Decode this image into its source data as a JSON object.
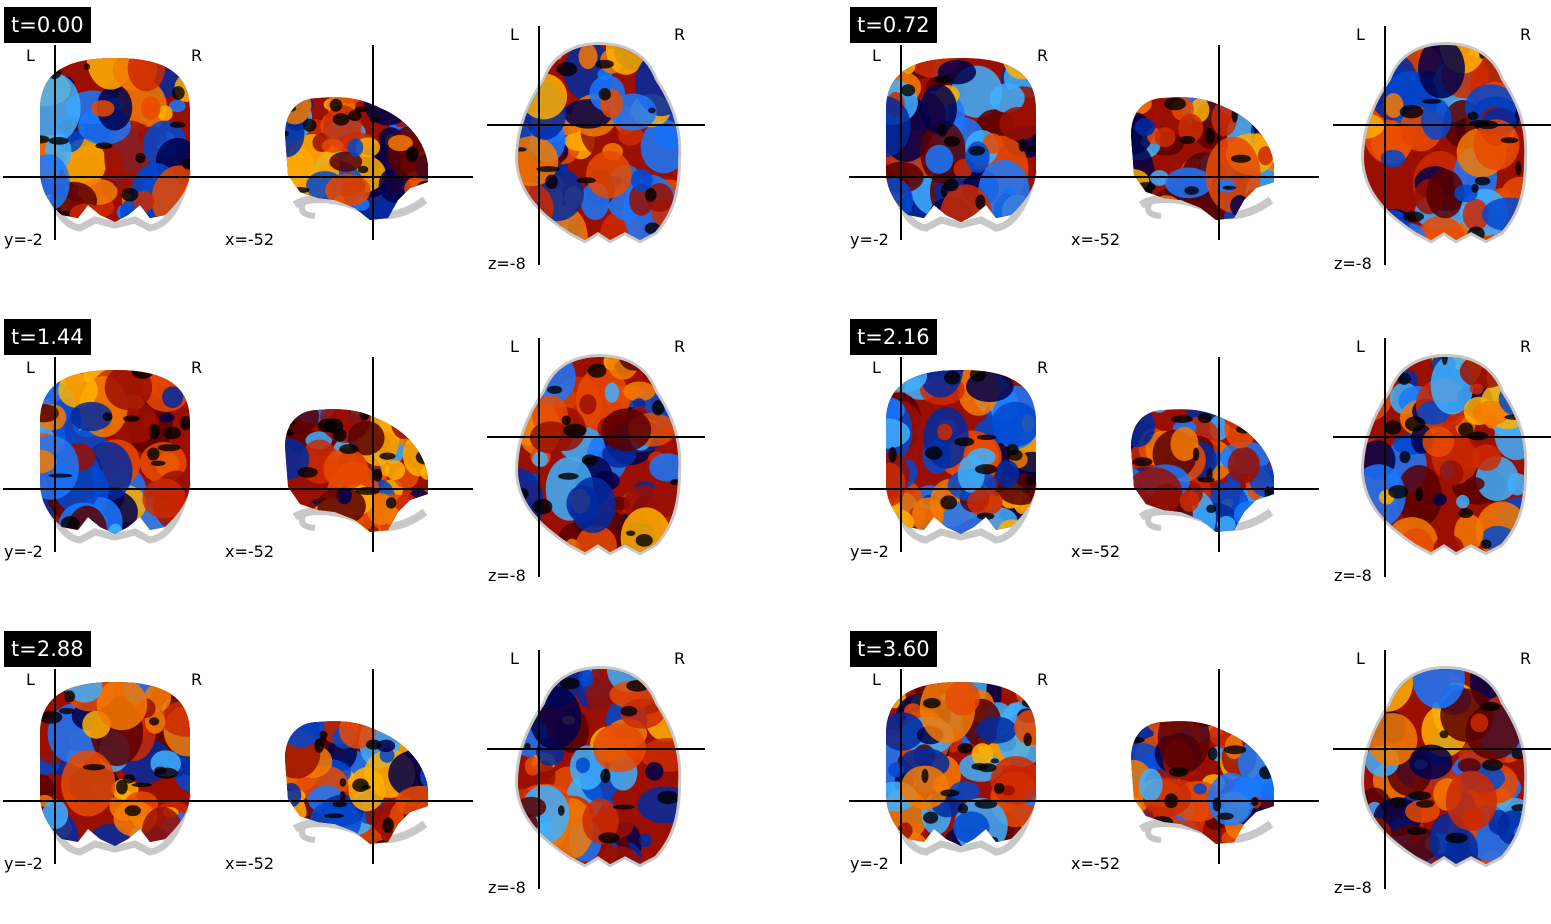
{
  "panels": [
    {
      "time_label": "t=0.00",
      "palette": 0
    },
    {
      "time_label": "t=0.72",
      "palette": 1
    },
    {
      "time_label": "t=1.44",
      "palette": 2
    },
    {
      "time_label": "t=2.16",
      "palette": 3
    },
    {
      "time_label": "t=2.88",
      "palette": 4
    },
    {
      "time_label": "t=3.60",
      "palette": 5
    }
  ],
  "orientation": {
    "left": "L",
    "right": "R"
  },
  "cut_coords": {
    "coronal": "y=-2",
    "sagittal": "x=-52",
    "axial": "z=-8"
  },
  "colors": {
    "background": "#ffffff",
    "hot": [
      "#5a0000",
      "#9a0f00",
      "#cc2a00",
      "#e84a00",
      "#f57a00",
      "#ffb000"
    ],
    "cold": [
      "#00004a",
      "#002aa0",
      "#0048d0",
      "#1a78ff",
      "#40b0ff"
    ],
    "anatomy_outline": "#c8c8c8",
    "crosshair": "#000000",
    "label_background": "#000000",
    "label_text": "#ffffff"
  }
}
